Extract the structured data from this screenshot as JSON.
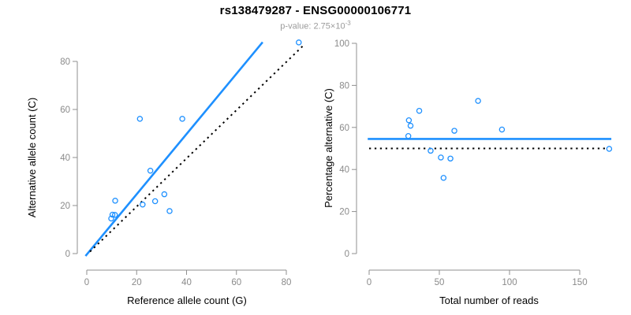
{
  "header": {
    "title": "rs138479287 - ENSG00000106771",
    "subtitle_prefix": "p-value: ",
    "pvalue_base": "2.75×10",
    "pvalue_exponent": "-3"
  },
  "colors": {
    "accent_blue": "#1E90FF",
    "dashed_black": "#000000",
    "axis_gray": "#8f8f8f",
    "tick_label_gray": "#8a8a8a",
    "label_black": "#000000",
    "subtitle_gray": "#9b9b9b"
  },
  "chart_data": [
    {
      "type": "scatter",
      "name": "allele-counts-scatter",
      "xlabel": "Reference allele count (G)",
      "ylabel": "Alternative allele count (C)",
      "xlim": [
        0,
        88
      ],
      "ylim": [
        0,
        90
      ],
      "xticks": [
        0,
        20,
        40,
        60,
        80
      ],
      "yticks": [
        0,
        20,
        40,
        60,
        80
      ],
      "grid": false,
      "legend": "none",
      "point_color": "#1E90FF",
      "points": [
        [
          11.4,
          22.0
        ],
        [
          10.3,
          16.2
        ],
        [
          11.3,
          16.1
        ],
        [
          9.8,
          14.6
        ],
        [
          21.3,
          56.1
        ],
        [
          38.3,
          56.1
        ],
        [
          25.5,
          34.5
        ],
        [
          31.1,
          24.7
        ],
        [
          27.4,
          21.8
        ],
        [
          22.4,
          20.4
        ],
        [
          33.2,
          17.7
        ],
        [
          85.0,
          87.9
        ]
      ],
      "lines": [
        {
          "name": "regression-line",
          "style": "solid",
          "color": "#1E90FF",
          "width": 2.6,
          "from": [
            -0.5,
            -1.0
          ],
          "to": [
            70.5,
            88.0
          ]
        },
        {
          "name": "identity-line",
          "style": "dotted",
          "color": "#000000",
          "width": 2.0,
          "from": [
            1.3,
            0.8
          ],
          "to": [
            87.5,
            87.3
          ]
        }
      ]
    },
    {
      "type": "scatter",
      "name": "percentage-alternative-scatter",
      "xlabel": "Total number of reads",
      "ylabel": "Percentage alternative (C)",
      "xlim": [
        0,
        172
      ],
      "ylim": [
        0,
        100
      ],
      "xticks": [
        0,
        50,
        100,
        150
      ],
      "yticks": [
        0,
        20,
        40,
        60,
        80,
        100
      ],
      "grid": false,
      "legend": "none",
      "point_color": "#1E90FF",
      "points": [
        [
          35.7,
          67.9
        ],
        [
          28.3,
          63.4
        ],
        [
          29.5,
          60.8
        ],
        [
          27.9,
          55.9
        ],
        [
          60.7,
          58.4
        ],
        [
          43.8,
          48.9
        ],
        [
          51.1,
          45.7
        ],
        [
          57.9,
          45.2
        ],
        [
          53.0,
          36.0
        ],
        [
          77.6,
          72.6
        ],
        [
          94.6,
          59.0
        ],
        [
          171.0,
          49.8
        ]
      ],
      "lines": [
        {
          "name": "mean-percentage-line",
          "style": "solid",
          "color": "#1E90FF",
          "width": 2.6,
          "from": [
            -1.0,
            54.5
          ],
          "to": [
            172.5,
            54.5
          ]
        },
        {
          "name": "expected-50pct-line",
          "style": "dotted",
          "color": "#000000",
          "width": 2.0,
          "from": [
            0.0,
            50.0
          ],
          "to": [
            170.0,
            50.0
          ]
        }
      ]
    }
  ]
}
